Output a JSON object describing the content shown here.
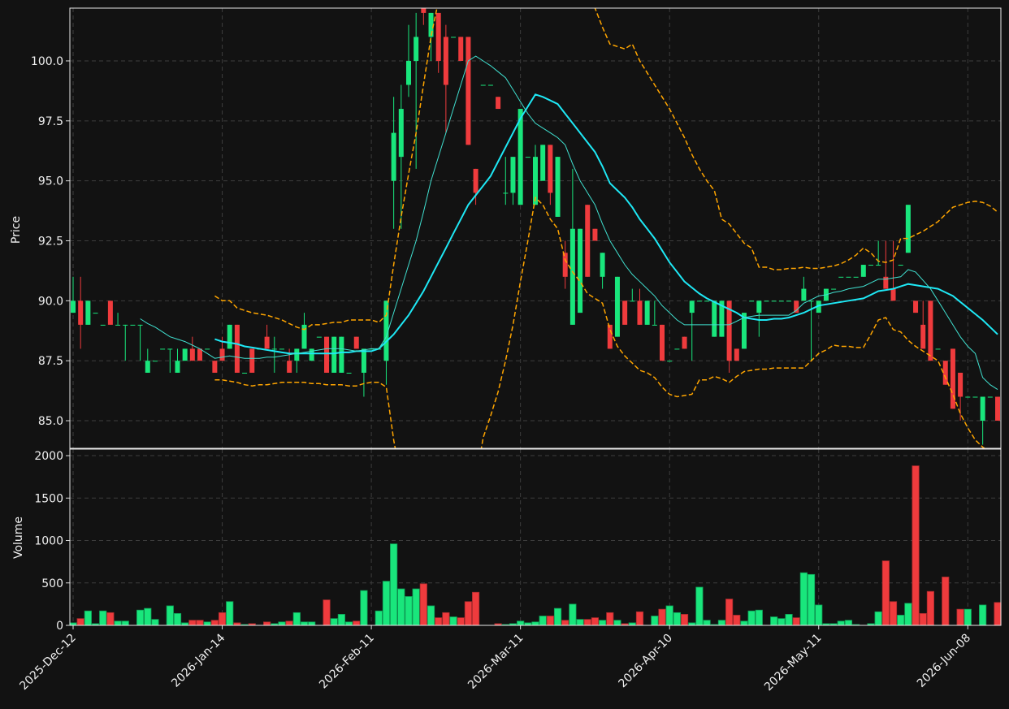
{
  "chart_data": {
    "type": "candlestick",
    "ylabel": "Price",
    "volume_label": "Volume",
    "up_color": "#19e67c",
    "down_color": "#ef3b3d",
    "grid": true,
    "ylim": [
      83.85,
      102.2
    ],
    "yticks": [
      {
        "value": 85,
        "label": "85.0"
      },
      {
        "value": 87.5,
        "label": "87.5"
      },
      {
        "value": 90,
        "label": "90.0"
      },
      {
        "value": 92.5,
        "label": "92.5"
      },
      {
        "value": 95,
        "label": "95.0"
      },
      {
        "value": 97.5,
        "label": "97.5"
      },
      {
        "value": 100,
        "label": "100.0"
      }
    ],
    "volume_ylim": [
      0,
      2077
    ],
    "volume_yticks": [
      0,
      500,
      1000,
      1500,
      2000
    ],
    "categories": [
      "2025-Dec-12",
      null,
      null,
      null,
      null,
      null,
      null,
      null,
      null,
      null,
      null,
      null,
      null,
      null,
      null,
      null,
      null,
      null,
      null,
      null,
      "2026-Jan-14",
      null,
      null,
      null,
      null,
      null,
      null,
      null,
      null,
      null,
      null,
      null,
      null,
      null,
      null,
      null,
      null,
      null,
      null,
      null,
      "2026-Feb-11",
      null,
      null,
      null,
      null,
      null,
      null,
      null,
      null,
      null,
      null,
      null,
      null,
      null,
      null,
      null,
      null,
      null,
      null,
      null,
      "2026-Mar-11",
      null,
      null,
      null,
      null,
      null,
      null,
      null,
      null,
      null,
      null,
      null,
      null,
      null,
      null,
      null,
      null,
      null,
      null,
      null,
      "2026-Apr-10",
      null,
      null,
      null,
      null,
      null,
      null,
      null,
      null,
      null,
      null,
      null,
      null,
      null,
      null,
      null,
      null,
      null,
      null,
      null,
      "2026-May-11",
      null,
      null,
      null,
      null,
      null,
      null,
      null,
      null,
      null,
      null,
      null,
      null,
      null,
      null,
      null,
      null,
      null,
      null,
      null,
      "2026-Jun-08",
      null,
      null,
      null,
      null
    ],
    "open": [
      89.5,
      90,
      89,
      89.5,
      89,
      90,
      89,
      89,
      89,
      89,
      87,
      87.5,
      88,
      88,
      87,
      87.5,
      88,
      88,
      88,
      87.5,
      88,
      88,
      89,
      87,
      88,
      88,
      88.5,
      88,
      88,
      87.5,
      87.5,
      88,
      87.5,
      88.5,
      88.5,
      87,
      87,
      87,
      88.5,
      87,
      88,
      88,
      87.5,
      95,
      96,
      99,
      100,
      102.5,
      101,
      102,
      101,
      101,
      101,
      101,
      95.5,
      99,
      99,
      98.5,
      94.5,
      94.5,
      94,
      96,
      94,
      95,
      96.5,
      93.5,
      92,
      89,
      89.5,
      94,
      93,
      91,
      89,
      88.5,
      90,
      90,
      90,
      89,
      89,
      89,
      87.5,
      88,
      88.5,
      89.5,
      90,
      90,
      88.5,
      88.5,
      90,
      88,
      88,
      90,
      89.5,
      90,
      90,
      90,
      90,
      90,
      90,
      90,
      89.5,
      90,
      90.5,
      91,
      91,
      91,
      91,
      91.5,
      91.5,
      91,
      90.5,
      91.5,
      92,
      90,
      89,
      90,
      88,
      87.5,
      88,
      87,
      86,
      86,
      85,
      86,
      86
    ],
    "high": [
      91,
      91,
      90,
      89.5,
      89,
      90,
      89.5,
      89,
      89,
      89,
      88,
      87.5,
      88,
      88,
      88,
      88,
      88.5,
      88,
      88,
      87.5,
      88.5,
      89,
      89,
      87,
      88,
      88,
      89,
      88.5,
      88,
      88,
      88,
      89.5,
      88,
      88.5,
      88.5,
      88.5,
      88.5,
      87,
      88.5,
      88,
      88,
      88,
      90,
      98.5,
      99,
      101.5,
      102,
      102.5,
      102,
      102,
      101.5,
      101,
      101,
      101,
      95.5,
      99,
      99,
      98.5,
      96,
      96,
      98,
      96,
      96.5,
      96.5,
      96.5,
      96,
      92.5,
      95.5,
      93,
      94,
      93,
      92,
      89,
      91,
      90,
      90.5,
      90.5,
      90,
      90,
      89,
      87.5,
      88,
      88.5,
      90,
      90,
      90,
      90,
      90,
      90,
      88,
      89.5,
      90,
      90,
      90,
      90,
      90,
      90,
      90,
      91,
      90,
      90,
      90.5,
      90.5,
      91,
      91,
      91,
      91.5,
      91.5,
      92.5,
      92.5,
      92.5,
      91.5,
      94,
      90,
      90,
      90,
      88,
      87.5,
      88,
      87,
      86,
      86,
      86,
      86,
      86
    ],
    "low": [
      89.5,
      88,
      89,
      89.5,
      89,
      89,
      89,
      87.5,
      89,
      87.5,
      87,
      87.5,
      88,
      87,
      87,
      87.5,
      87.5,
      87.5,
      88,
      87,
      87.5,
      88,
      87,
      87,
      87,
      88,
      88,
      87,
      88,
      87,
      87,
      88,
      87.5,
      88.5,
      87,
      87,
      87,
      87,
      88,
      86,
      88,
      88,
      86.5,
      93,
      93,
      98.5,
      95.5,
      101.5,
      100,
      99.5,
      97,
      101,
      100,
      96.5,
      94,
      99,
      99,
      98,
      94,
      94,
      94,
      96,
      94,
      95,
      94,
      93.5,
      90.5,
      89,
      89.5,
      91,
      92.5,
      90.5,
      88,
      88.5,
      89,
      90,
      89,
      89,
      89,
      87.5,
      87.5,
      88,
      88,
      87.5,
      90,
      90,
      88.5,
      88.5,
      87,
      87.5,
      88,
      90,
      88.5,
      90,
      90,
      90,
      90,
      89.5,
      90,
      87.5,
      89.5,
      90,
      90.5,
      91,
      91,
      91,
      91,
      91.5,
      91.5,
      90.5,
      90,
      91.5,
      92,
      89.5,
      88,
      87.5,
      88,
      86.5,
      85.5,
      85,
      86,
      86,
      84,
      86,
      85
    ],
    "close": [
      90,
      89,
      90,
      89.5,
      89,
      89,
      89,
      89,
      89,
      89,
      87.5,
      87.5,
      88,
      88,
      87.5,
      88,
      87.5,
      87.5,
      88,
      87,
      87.5,
      89,
      87,
      87,
      87,
      88,
      88,
      88,
      88,
      87,
      88,
      89,
      88,
      88.5,
      87,
      88.5,
      88.5,
      87,
      88,
      88,
      88,
      88,
      90,
      97,
      98,
      100,
      101,
      102,
      102,
      100,
      99,
      101,
      100,
      96.5,
      94.5,
      99,
      99,
      98,
      94.5,
      96,
      98,
      96,
      96,
      96.5,
      94.5,
      96,
      91,
      93,
      93,
      91,
      92.5,
      92,
      88,
      91,
      89,
      90,
      89,
      90,
      89,
      87.5,
      87.5,
      88,
      88,
      90,
      90,
      90,
      90,
      90,
      87.5,
      87.5,
      89.5,
      90,
      90,
      90,
      90,
      90,
      90,
      89.5,
      90.5,
      90,
      90,
      90.5,
      90.5,
      91,
      91,
      91,
      91.5,
      91.5,
      91.5,
      90.5,
      90,
      91.5,
      94,
      89.5,
      88,
      87.5,
      88,
      86.5,
      85.5,
      86,
      86,
      86,
      86,
      86,
      85
    ],
    "volume": [
      30,
      80,
      170,
      20,
      170,
      150,
      50,
      50,
      0,
      180,
      200,
      70,
      0,
      230,
      140,
      30,
      60,
      60,
      40,
      60,
      150,
      280,
      30,
      10,
      20,
      0,
      40,
      20,
      40,
      50,
      150,
      40,
      40,
      0,
      300,
      80,
      130,
      40,
      50,
      410,
      0,
      170,
      520,
      960,
      430,
      340,
      430,
      490,
      230,
      90,
      150,
      100,
      90,
      280,
      390,
      0,
      0,
      20,
      10,
      20,
      50,
      30,
      40,
      110,
      110,
      200,
      60,
      250,
      70,
      70,
      90,
      60,
      150,
      60,
      20,
      30,
      160,
      0,
      110,
      190,
      230,
      150,
      130,
      30,
      450,
      60,
      10,
      60,
      310,
      120,
      50,
      170,
      180,
      0,
      100,
      80,
      130,
      90,
      620,
      600,
      240,
      20,
      20,
      50,
      60,
      10,
      0,
      20,
      160,
      760,
      280,
      120,
      260,
      1880,
      140,
      400,
      0,
      570,
      0,
      190,
      190,
      0,
      240,
      0,
      270
    ],
    "overlays": [
      {
        "color": "#1ee8f5",
        "linewidth": 2,
        "style": "solid",
        "values": [
          null,
          null,
          null,
          null,
          null,
          null,
          null,
          null,
          null,
          null,
          null,
          null,
          null,
          null,
          null,
          null,
          null,
          null,
          null,
          88.4,
          88.3,
          88.25,
          88.2,
          88.1,
          88.05,
          88.0,
          87.95,
          87.9,
          87.85,
          87.8,
          87.8,
          87.8,
          87.8,
          87.8,
          87.8,
          87.8,
          87.85,
          87.85,
          87.9,
          87.9,
          87.9,
          88.0,
          88.3,
          88.6,
          89.0,
          89.4,
          89.9,
          90.4,
          91.0,
          91.6,
          92.2,
          92.8,
          93.4,
          94.0,
          94.4,
          94.8,
          95.2,
          95.8,
          96.4,
          97.0,
          97.6,
          98.1,
          98.6,
          98.5,
          98.35,
          98.2,
          97.8,
          97.4,
          97.0,
          96.6,
          96.2,
          95.6,
          94.9,
          94.6,
          94.3,
          93.9,
          93.4,
          93.0,
          92.6,
          92.1,
          91.6,
          91.2,
          90.8,
          90.55,
          90.3,
          90.1,
          89.95,
          89.8,
          89.65,
          89.5,
          89.3,
          89.25,
          89.2,
          89.2,
          89.25,
          89.25,
          89.3,
          89.4,
          89.5,
          89.65,
          89.8,
          89.85,
          89.9,
          89.95,
          90.0,
          90.05,
          90.1,
          90.25,
          90.4,
          90.45,
          90.5,
          90.6,
          90.7,
          90.65,
          90.6,
          90.55,
          90.5,
          90.35,
          90.2,
          89.95,
          89.7,
          89.45,
          89.2,
          88.9,
          88.6
        ]
      },
      {
        "color": "#40e0d0",
        "linewidth": 1,
        "style": "solid",
        "values": [
          null,
          null,
          null,
          null,
          null,
          null,
          null,
          null,
          null,
          89.25,
          89.05,
          88.9,
          88.7,
          88.5,
          88.4,
          88.3,
          88.15,
          88.0,
          87.8,
          87.6,
          87.65,
          87.7,
          87.65,
          87.6,
          87.6,
          87.6,
          87.65,
          87.65,
          87.7,
          87.75,
          87.8,
          87.85,
          87.9,
          87.95,
          88.0,
          88.0,
          88.0,
          87.95,
          87.9,
          87.95,
          88.0,
          88.0,
          88.5,
          89.5,
          90.5,
          91.5,
          92.5,
          93.7,
          95.0,
          96.0,
          97.0,
          98.0,
          99.0,
          100.0,
          100.2,
          100.0,
          99.8,
          99.55,
          99.3,
          98.8,
          98.3,
          97.8,
          97.4,
          97.2,
          97.0,
          96.8,
          96.5,
          95.7,
          95.0,
          94.5,
          94.0,
          93.2,
          92.5,
          92.0,
          91.5,
          91.1,
          90.8,
          90.5,
          90.2,
          89.8,
          89.5,
          89.2,
          89.0,
          89.0,
          89.0,
          89.0,
          89.0,
          89.0,
          89.0,
          89.15,
          89.3,
          89.35,
          89.4,
          89.4,
          89.4,
          89.4,
          89.4,
          89.6,
          89.9,
          90.05,
          90.2,
          90.25,
          90.35,
          90.4,
          90.5,
          90.55,
          90.6,
          90.75,
          90.9,
          90.9,
          90.95,
          91.0,
          91.3,
          91.2,
          90.85,
          90.5,
          90.0,
          89.5,
          89.0,
          88.5,
          88.1,
          87.8,
          86.8,
          86.5,
          86.3
        ]
      },
      {
        "color": "#ffa500",
        "linewidth": 1.5,
        "style": "dashed",
        "values": [
          null,
          null,
          null,
          null,
          null,
          null,
          null,
          null,
          null,
          null,
          null,
          null,
          null,
          null,
          null,
          null,
          null,
          null,
          null,
          90.2,
          90.0,
          90.0,
          89.7,
          89.6,
          89.5,
          89.45,
          89.4,
          89.3,
          89.2,
          89.05,
          88.9,
          88.8,
          89.0,
          89.0,
          89.05,
          89.1,
          89.1,
          89.2,
          89.2,
          89.2,
          89.2,
          89.1,
          89.4,
          91.5,
          93.5,
          95.3,
          97.0,
          99.0,
          101.0,
          102.5,
          103.5,
          104.3,
          105.0,
          105.7,
          106.2,
          106.5,
          106.8,
          107.0,
          107.0,
          107.0,
          107.0,
          107.0,
          107.0,
          106.7,
          106.4,
          106.0,
          105.5,
          104.8,
          104.0,
          103.0,
          102.2,
          101.4,
          100.7,
          100.6,
          100.5,
          100.7,
          100.0,
          99.5,
          99.0,
          98.5,
          98.0,
          97.4,
          96.8,
          96.1,
          95.5,
          95.0,
          94.6,
          93.4,
          93.2,
          92.8,
          92.4,
          92.2,
          91.4,
          91.4,
          91.3,
          91.3,
          91.35,
          91.35,
          91.4,
          91.35,
          91.35,
          91.4,
          91.45,
          91.55,
          91.7,
          91.9,
          92.2,
          92.0,
          91.65,
          91.6,
          91.7,
          92.6,
          92.6,
          92.75,
          92.9,
          93.1,
          93.3,
          93.6,
          93.9,
          94.0,
          94.1,
          94.15,
          94.1,
          93.95,
          93.7
        ]
      },
      {
        "color": "#ffa500",
        "linewidth": 1.5,
        "style": "dashed",
        "values": [
          null,
          null,
          null,
          null,
          null,
          null,
          null,
          null,
          null,
          null,
          null,
          null,
          null,
          null,
          null,
          null,
          null,
          null,
          null,
          86.7,
          86.7,
          86.65,
          86.6,
          86.5,
          86.45,
          86.5,
          86.5,
          86.55,
          86.6,
          86.6,
          86.6,
          86.6,
          86.55,
          86.55,
          86.5,
          86.5,
          86.5,
          86.45,
          86.45,
          86.55,
          86.6,
          86.6,
          86.4,
          84.2,
          82.5,
          81.0,
          80.0,
          79.0,
          78.5,
          78.2,
          78.0,
          78.3,
          79.0,
          80.5,
          82.5,
          84.3,
          85.2,
          86.2,
          87.5,
          89.0,
          90.8,
          92.5,
          94.3,
          94.0,
          93.4,
          93.0,
          91.7,
          91.2,
          90.8,
          90.3,
          90.1,
          89.9,
          88.8,
          88.1,
          87.7,
          87.4,
          87.1,
          87.0,
          86.8,
          86.4,
          86.1,
          86.0,
          86.05,
          86.1,
          86.7,
          86.7,
          86.85,
          86.75,
          86.6,
          86.85,
          87.05,
          87.1,
          87.15,
          87.15,
          87.2,
          87.2,
          87.2,
          87.2,
          87.2,
          87.5,
          87.8,
          87.95,
          88.15,
          88.1,
          88.1,
          88.05,
          88.05,
          88.6,
          89.2,
          89.3,
          88.8,
          88.7,
          88.35,
          88.1,
          87.9,
          87.7,
          87.5,
          86.8,
          86.1,
          85.3,
          84.7,
          84.2,
          83.9,
          83.7,
          83.5
        ]
      }
    ]
  }
}
